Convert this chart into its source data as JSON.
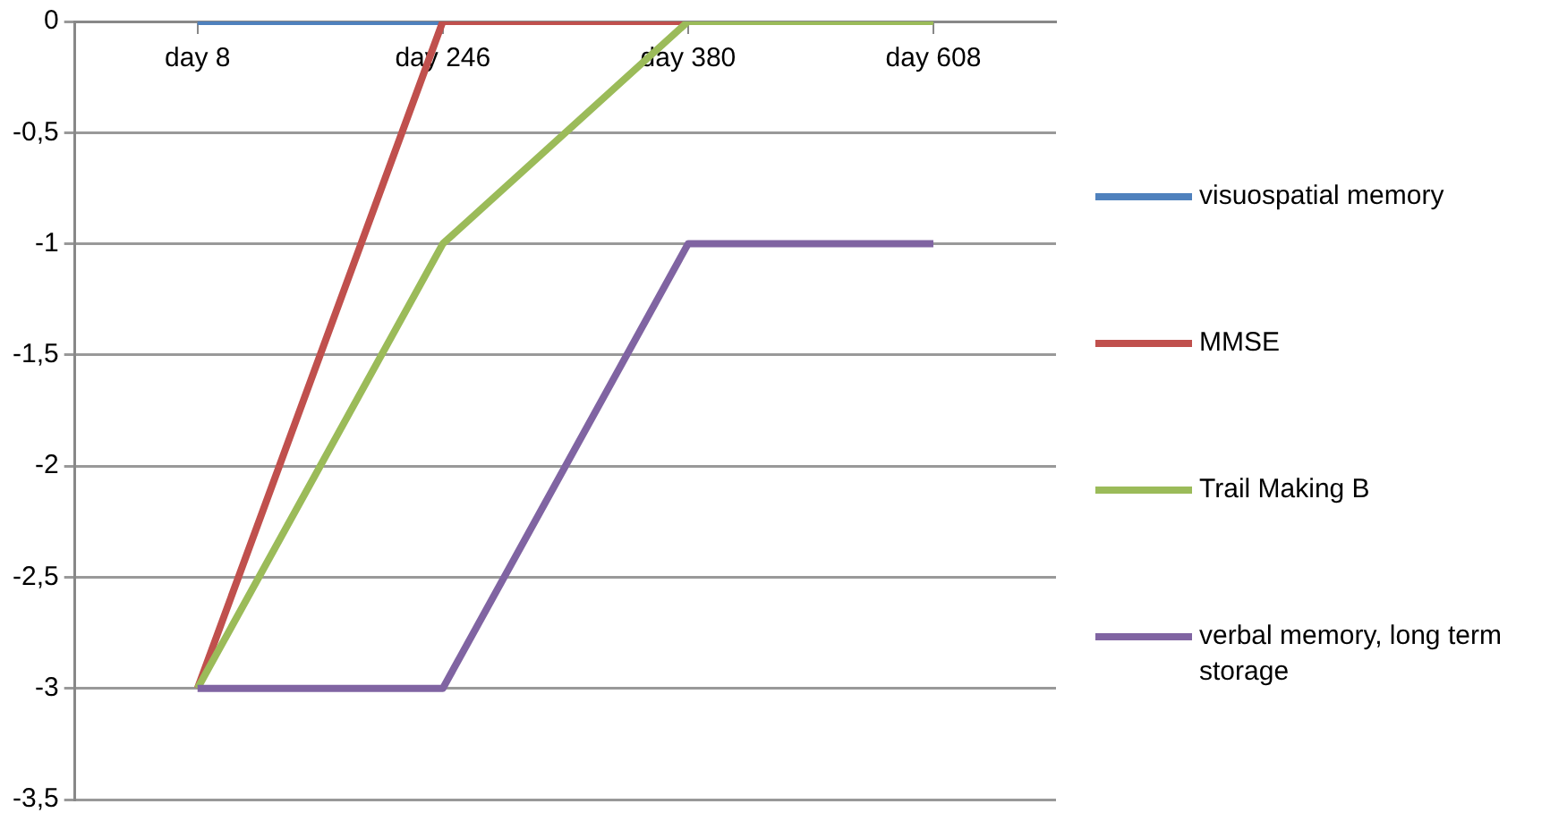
{
  "chart_data": {
    "type": "line",
    "categories": [
      "day 8",
      "day 246",
      "day 380",
      "day 608"
    ],
    "series": [
      {
        "name": "visuospatial memory",
        "color": "#4f81bd",
        "values": [
          0,
          0,
          null,
          null
        ]
      },
      {
        "name": "MMSE",
        "color": "#c0504d",
        "values": [
          -3,
          0,
          0,
          null
        ]
      },
      {
        "name": "Trail Making B",
        "color": "#9bbb59",
        "values": [
          -3,
          -1,
          0,
          0
        ]
      },
      {
        "name": "verbal memory, long term storage",
        "color": "#8064a2",
        "values": [
          -3,
          -3,
          -1,
          -1
        ]
      }
    ],
    "ylim": [
      -3.5,
      0
    ],
    "yticks": [
      0,
      {
        "value": -0.5,
        "label": "-0,5"
      },
      -1,
      {
        "value": -1.5,
        "label": "-1,5"
      },
      -2,
      {
        "value": -2.5,
        "label": "-2,5"
      },
      -3,
      {
        "value": -3.5,
        "label": "-3,5"
      }
    ],
    "grid": "y",
    "legend": "right",
    "marker": "none",
    "line_style": "solid"
  }
}
